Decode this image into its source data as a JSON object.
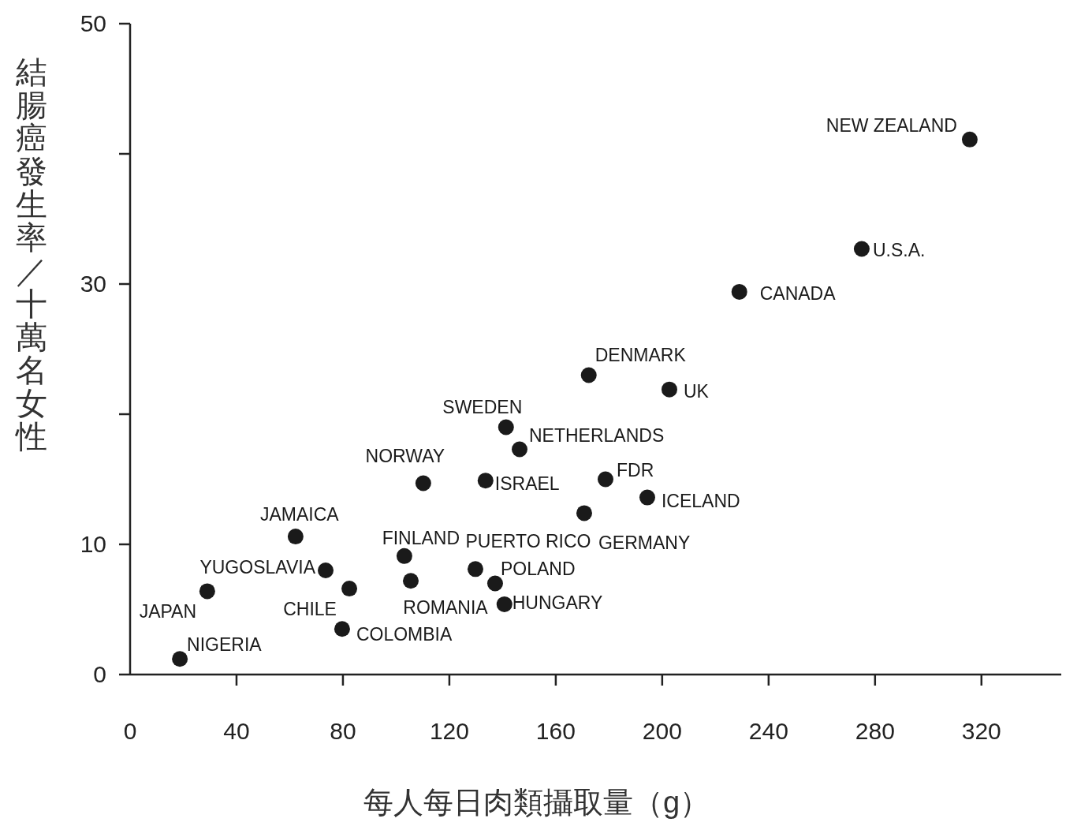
{
  "chart_data": {
    "type": "scatter",
    "xlabel": "每人每日肉類攝取量（g）",
    "ylabel": "結腸癌發生率／十萬名女性",
    "x": [
      315.6,
      275.0,
      229.0,
      172.4,
      202.7,
      141.3,
      146.4,
      110.2,
      133.6,
      178.7,
      194.4,
      170.7,
      129.8,
      103.1,
      137.2,
      105.5,
      140.7,
      62.2,
      73.5,
      82.4,
      79.7,
      29.0,
      18.7
    ],
    "values": [
      41.1,
      32.7,
      29.4,
      23.0,
      21.9,
      19.0,
      17.3,
      14.7,
      14.9,
      15.0,
      13.6,
      12.4,
      8.1,
      9.1,
      7.0,
      7.2,
      5.4,
      10.6,
      8.0,
      6.6,
      3.5,
      6.4,
      1.2
    ],
    "color": "#1a1a1a",
    "marker": "circle",
    "xlim": [
      0,
      350
    ],
    "ylim": [
      0,
      50
    ],
    "xticks": [
      0,
      40,
      80,
      120,
      160,
      200,
      240,
      280,
      320
    ],
    "yticks": [
      0,
      10,
      {
        "value": 20,
        "label": null
      },
      30,
      {
        "value": 40,
        "label": null
      },
      50
    ],
    "annotations": [
      {
        "text": "NEW ZEALAND",
        "x": 315.6,
        "y": 41.1
      },
      {
        "text": "U.S.A.",
        "x": 275.0,
        "y": 32.7
      },
      {
        "text": "CANADA",
        "x": 229.0,
        "y": 29.4
      },
      {
        "text": "DENMARK",
        "x": 172.4,
        "y": 23.0
      },
      {
        "text": "UK",
        "x": 202.7,
        "y": 21.9
      },
      {
        "text": "SWEDEN",
        "x": 141.3,
        "y": 19.0
      },
      {
        "text": "NETHERLANDS",
        "x": 146.4,
        "y": 17.3
      },
      {
        "text": "NORWAY",
        "x": 110.2,
        "y": 14.7
      },
      {
        "text": "ISRAEL",
        "x": 133.6,
        "y": 14.9
      },
      {
        "text": "FDR",
        "x": 178.7,
        "y": 15.0
      },
      {
        "text": "ICELAND",
        "x": 194.4,
        "y": 13.6
      },
      {
        "text": "GERMANY",
        "x": 170.7,
        "y": 12.4
      },
      {
        "text": "PUERTO RICO",
        "x": 129.8,
        "y": 8.1
      },
      {
        "text": "FINLAND",
        "x": 103.1,
        "y": 9.1
      },
      {
        "text": "POLAND",
        "x": 137.2,
        "y": 7.0
      },
      {
        "text": "ROMANIA",
        "x": 105.5,
        "y": 7.2
      },
      {
        "text": "HUNGARY",
        "x": 140.7,
        "y": 5.4
      },
      {
        "text": "JAMAICA",
        "x": 62.2,
        "y": 10.6
      },
      {
        "text": "YUGOSLAVIA",
        "x": 73.5,
        "y": 8.0
      },
      {
        "text": "CHILE",
        "x": 82.4,
        "y": 6.6
      },
      {
        "text": "COLOMBIA",
        "x": 79.7,
        "y": 3.5
      },
      {
        "text": "JAPAN",
        "x": 29.0,
        "y": 6.4
      },
      {
        "text": "NIGERIA",
        "x": 18.7,
        "y": 1.2
      }
    ]
  }
}
